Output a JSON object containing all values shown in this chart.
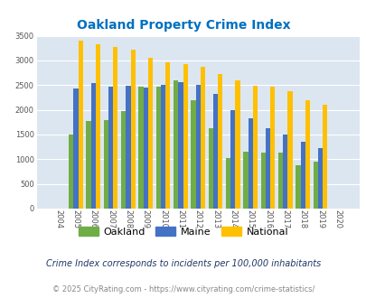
{
  "title": "Oakland Property Crime Index",
  "years": [
    2004,
    2005,
    2006,
    2007,
    2008,
    2009,
    2010,
    2011,
    2012,
    2013,
    2014,
    2015,
    2016,
    2017,
    2018,
    2019,
    2020
  ],
  "oakland": [
    0,
    1500,
    1775,
    1800,
    1975,
    2475,
    2475,
    2600,
    2200,
    1625,
    1025,
    1150,
    1125,
    1125,
    875,
    950,
    0
  ],
  "maine": [
    0,
    2425,
    2540,
    2465,
    2480,
    2450,
    2500,
    2560,
    2500,
    2330,
    2000,
    1825,
    1625,
    1500,
    1350,
    1230,
    0
  ],
  "national": [
    0,
    3410,
    3330,
    3270,
    3220,
    3050,
    2970,
    2920,
    2870,
    2730,
    2600,
    2490,
    2460,
    2370,
    2200,
    2100,
    0
  ],
  "oakland_color": "#70ad47",
  "maine_color": "#4472c4",
  "national_color": "#ffc000",
  "bg_color": "#dce6f1",
  "ylim": [
    0,
    3500
  ],
  "yticks": [
    0,
    500,
    1000,
    1500,
    2000,
    2500,
    3000,
    3500
  ],
  "title_color": "#0070c0",
  "subtitle": "Crime Index corresponds to incidents per 100,000 inhabitants",
  "footer": "© 2025 CityRating.com - https://www.cityrating.com/crime-statistics/",
  "legend_labels": [
    "Oakland",
    "Maine",
    "National"
  ]
}
